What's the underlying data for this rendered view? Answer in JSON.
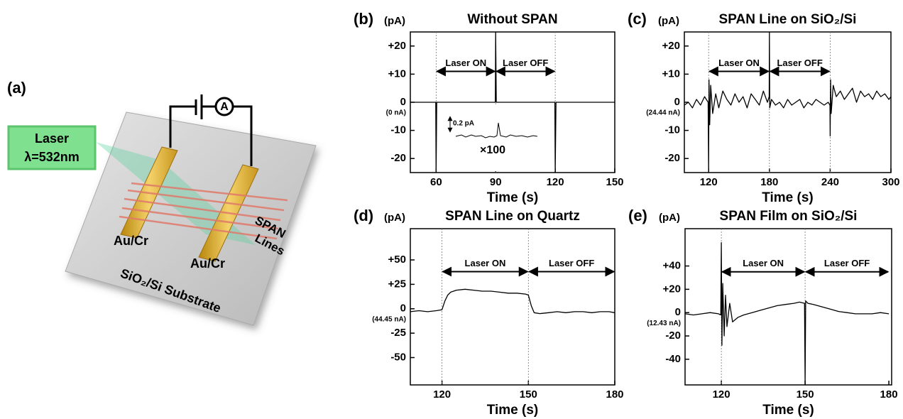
{
  "diagram": {
    "panel_label": "(a)",
    "laser": [
      "Laser",
      "λ=532nm"
    ],
    "electrodes": [
      "Au/Cr",
      "Au/Cr"
    ],
    "span_lines": [
      "SPAN",
      "Lines"
    ],
    "substrate": "SiO₂/Si Substrate",
    "ammeter": "A"
  },
  "chart_data": [
    {
      "type": "line",
      "panel_label": "(b)",
      "title": "Without SPAN",
      "ylabel": "(pA)",
      "xlabel": "Time (s)",
      "zero_note": "(0 nA)",
      "color": "#000000",
      "xlim": [
        47,
        150
      ],
      "xticks": [
        60,
        90,
        120,
        150
      ],
      "ylim": [
        -25,
        25
      ],
      "yticks": [
        {
          "value": 20,
          "label": "+20"
        },
        {
          "value": 10,
          "label": "+10"
        },
        0,
        -10,
        -20
      ],
      "vlines": [
        60,
        90,
        120
      ],
      "annotations": [
        {
          "text": "Laser ON",
          "x": [
            60,
            90
          ],
          "y": 11
        },
        {
          "text": "Laser OFF",
          "x": [
            90,
            120
          ],
          "y": 11
        }
      ],
      "inset": {
        "scale_label": "0.2 pA",
        "factor_label": "×100"
      },
      "x": [
        47,
        59.8,
        60,
        60.3,
        89.8,
        90,
        90.3,
        119.8,
        120,
        120.4,
        150
      ],
      "values": [
        0,
        0,
        -25,
        0,
        0,
        25,
        0,
        0,
        -25,
        0,
        0
      ]
    },
    {
      "type": "line",
      "panel_label": "(c)",
      "title": "SPAN Line on SiO₂/Si",
      "ylabel": "(pA)",
      "xlabel": "Time (s)",
      "zero_note": "(24.44 nA)",
      "color": "#000000",
      "xlim": [
        96,
        300
      ],
      "xticks": [
        120,
        180,
        240,
        300
      ],
      "ylim": [
        -25,
        25
      ],
      "yticks": [
        {
          "value": 20,
          "label": "+20"
        },
        {
          "value": 10,
          "label": "+10"
        },
        0,
        -10,
        -20
      ],
      "vlines": [
        120,
        180,
        240
      ],
      "annotations": [
        {
          "text": "Laser ON",
          "x": [
            120,
            180
          ],
          "y": 11
        },
        {
          "text": "Laser OFF",
          "x": [
            180,
            240
          ],
          "y": 11
        }
      ],
      "x": [
        96,
        100,
        104,
        108,
        112,
        116,
        119.5,
        120,
        120.3,
        121,
        122,
        124,
        127,
        130,
        134,
        138,
        142,
        146,
        150,
        154,
        158,
        162,
        166,
        170,
        174,
        178,
        179.8,
        180,
        180.3,
        182,
        186,
        190,
        194,
        198,
        202,
        206,
        210,
        214,
        218,
        222,
        226,
        230,
        234,
        238,
        239.8,
        240,
        240.4,
        241,
        243,
        246,
        250,
        254,
        258,
        262,
        266,
        270,
        274,
        278,
        282,
        286,
        290,
        294,
        298,
        300
      ],
      "values": [
        -1,
        0,
        -2,
        1,
        -1,
        2,
        0,
        -25,
        8,
        -8,
        6,
        -4,
        3,
        -2,
        4,
        1,
        -1,
        3,
        0,
        2,
        -2,
        3,
        1,
        -1,
        4,
        0,
        2,
        25,
        -2,
        1,
        -1,
        0,
        -2,
        1,
        -1,
        0,
        1,
        -2,
        0,
        -1,
        1,
        0,
        -1,
        0,
        -1,
        -12,
        8,
        -4,
        6,
        2,
        4,
        1,
        3,
        5,
        0,
        4,
        2,
        3,
        1,
        4,
        2,
        3,
        1,
        2
      ]
    },
    {
      "type": "line",
      "panel_label": "(d)",
      "title": "SPAN Line on Quartz",
      "ylabel": "(pA)",
      "xlabel": "Time (s)",
      "zero_note": "(44.45 nA)",
      "color": "#000000",
      "xlim": [
        109,
        180
      ],
      "xticks": [
        120,
        150,
        180
      ],
      "ylim": [
        -78,
        82
      ],
      "yticks": [
        {
          "value": 50,
          "label": "+50"
        },
        {
          "value": 25,
          "label": "+25"
        },
        0,
        -25,
        -50
      ],
      "vlines": [
        120,
        150
      ],
      "annotations": [
        {
          "text": "Laser ON",
          "x": [
            120,
            150
          ],
          "y": 38
        },
        {
          "text": "Laser OFF",
          "x": [
            150,
            180
          ],
          "y": 38
        }
      ],
      "x": [
        109,
        112,
        115,
        118,
        120,
        121,
        122,
        123,
        125,
        128,
        131,
        134,
        137,
        140,
        143,
        146,
        149,
        150,
        151,
        152,
        154,
        157,
        160,
        163,
        166,
        169,
        172,
        175,
        178,
        180
      ],
      "values": [
        -3,
        -2,
        -3,
        -2,
        -1,
        8,
        14,
        17,
        19,
        20,
        19,
        18,
        18,
        17,
        16,
        16,
        15,
        14,
        3,
        -4,
        -5,
        -4,
        -3,
        -4,
        -3,
        -3,
        -4,
        -3,
        -3,
        -4
      ]
    },
    {
      "type": "line",
      "panel_label": "(e)",
      "title": "SPAN Film on SiO₂/Si",
      "ylabel": "(pA)",
      "xlabel": "Time (s)",
      "zero_note": "(12.43 nA)",
      "color": "#000000",
      "xlim": [
        107,
        181
      ],
      "xticks": [
        120,
        150,
        180
      ],
      "ylim": [
        -62,
        72
      ],
      "yticks": [
        {
          "value": 40,
          "label": "+40"
        },
        {
          "value": 20,
          "label": "+20"
        },
        0,
        -20,
        -40
      ],
      "vlines": [
        120,
        150
      ],
      "annotations": [
        {
          "text": "Laser ON",
          "x": [
            120,
            150
          ],
          "y": 35
        },
        {
          "text": "Laser OFF",
          "x": [
            150,
            180
          ],
          "y": 35
        }
      ],
      "x": [
        107,
        110,
        113,
        116,
        119,
        119.8,
        120,
        120.2,
        120.5,
        121,
        121.5,
        122,
        123,
        124,
        126,
        128,
        131,
        134,
        137,
        140,
        143,
        146,
        148,
        149.8,
        150,
        150.2,
        151,
        153,
        156,
        159,
        162,
        165,
        168,
        171,
        174,
        177,
        180
      ],
      "values": [
        -1,
        -2,
        -1,
        0,
        -1,
        -2,
        60,
        -28,
        25,
        -20,
        15,
        -12,
        8,
        -8,
        -4,
        -2,
        0,
        2,
        4,
        6,
        7,
        8,
        9,
        8,
        -62,
        10,
        8,
        7,
        5,
        3,
        1,
        0,
        -1,
        -1,
        -1,
        0,
        -1
      ]
    }
  ]
}
